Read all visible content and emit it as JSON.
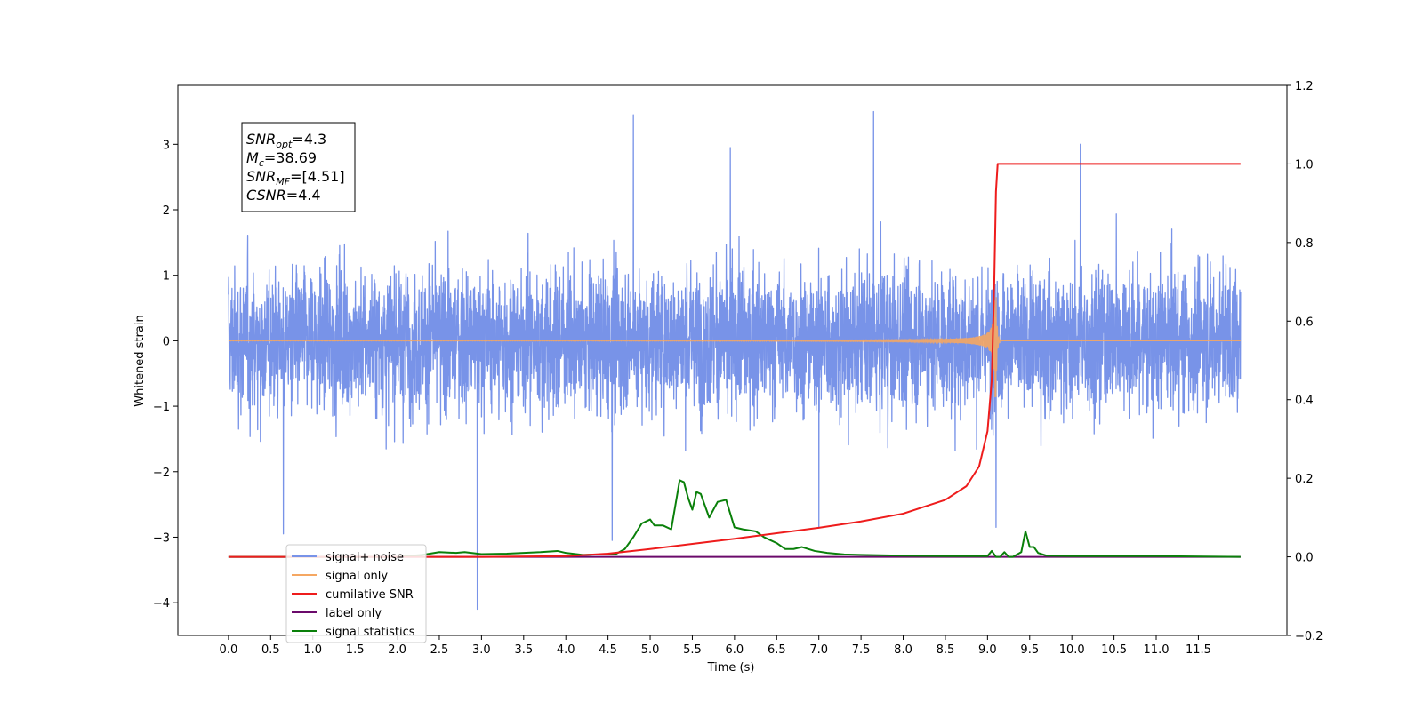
{
  "chart_data": {
    "type": "line",
    "xlabel": "Time (s)",
    "ylabel_left": "Whitened strain",
    "ylabel_right": "",
    "x_ticks": [
      "0.0",
      "0.5",
      "1.0",
      "1.5",
      "2.0",
      "2.5",
      "3.0",
      "3.5",
      "4.0",
      "4.5",
      "5.0",
      "5.5",
      "6.0",
      "6.5",
      "7.0",
      "7.5",
      "8.0",
      "8.5",
      "9.0",
      "9.5",
      "10.0",
      "10.5",
      "11.0",
      "11.5"
    ],
    "y_left_ticks": [
      "3",
      "2",
      "1",
      "0",
      "−1",
      "−2",
      "−3",
      "−4"
    ],
    "y_right_ticks": [
      "1.2",
      "1.0",
      "0.8",
      "0.6",
      "0.4",
      "0.2",
      "0.0",
      "−0.2"
    ],
    "xlim": [
      -0.6,
      12.55
    ],
    "ylim_left": [
      -4.5,
      3.9
    ],
    "ylim_right": [
      -0.2,
      1.2
    ],
    "grid": false,
    "legend_position": "lower-left",
    "annotation": {
      "lines": [
        {
          "base": "SNR",
          "sub": "opt",
          "rest": "=4.3"
        },
        {
          "base": "M",
          "sub": "c",
          "rest": "=38.69"
        },
        {
          "base": "SNR",
          "sub": "MF",
          "rest": "=[4.51]"
        },
        {
          "base": "CSNR",
          "sub": "",
          "rest": "=4.4"
        }
      ]
    },
    "series": [
      {
        "name": "signal+ noise",
        "axis": "left",
        "color": "#7893e8",
        "description_values": {
          "x_range": [
            0.0,
            12.0
          ],
          "typical_amplitude": [
            -2.0,
            2.0
          ],
          "peaks": [
            [
              4.8,
              3.45
            ],
            [
              7.65,
              3.5
            ],
            [
              10.1,
              3.0
            ],
            [
              5.95,
              2.95
            ],
            [
              2.95,
              -4.1
            ],
            [
              0.65,
              -2.95
            ],
            [
              4.55,
              -3.05
            ],
            [
              9.1,
              -2.85
            ],
            [
              7.0,
              -2.85
            ]
          ]
        }
      },
      {
        "name": "signal only",
        "axis": "left",
        "color": "#f5a762",
        "chirp": {
          "start_x": 0.0,
          "merger_x": 9.1,
          "end_x": 12.0,
          "peak_amplitude": 0.9
        }
      },
      {
        "name": "cumilative SNR",
        "axis": "right",
        "color": "#ee1c1c",
        "x": [
          0.0,
          3.0,
          4.0,
          4.5,
          5.0,
          5.5,
          6.0,
          6.5,
          7.0,
          7.5,
          8.0,
          8.5,
          8.75,
          8.9,
          9.0,
          9.05,
          9.08,
          9.1,
          9.12,
          10.0,
          11.0,
          12.0
        ],
        "y": [
          0.0,
          0.0,
          0.002,
          0.008,
          0.02,
          0.033,
          0.046,
          0.06,
          0.074,
          0.09,
          0.11,
          0.145,
          0.18,
          0.23,
          0.32,
          0.45,
          0.7,
          0.93,
          1.0,
          1.0,
          1.0,
          1.0
        ]
      },
      {
        "name": "label only",
        "axis": "right",
        "color": "#6b0a6b",
        "x": [
          0.0,
          12.0
        ],
        "y": [
          0.0,
          0.0
        ]
      },
      {
        "name": "signal statistics",
        "axis": "right",
        "color": "#0a800a",
        "x": [
          0.0,
          2.0,
          2.3,
          2.5,
          2.7,
          2.8,
          3.0,
          3.3,
          3.5,
          3.7,
          3.9,
          4.0,
          4.2,
          4.4,
          4.6,
          4.7,
          4.8,
          4.9,
          5.0,
          5.05,
          5.15,
          5.25,
          5.35,
          5.4,
          5.45,
          5.5,
          5.55,
          5.6,
          5.7,
          5.8,
          5.9,
          6.0,
          6.1,
          6.25,
          6.35,
          6.4,
          6.5,
          6.6,
          6.7,
          6.8,
          6.95,
          7.1,
          7.3,
          7.5,
          8.0,
          8.5,
          9.0,
          9.05,
          9.1,
          9.15,
          9.2,
          9.25,
          9.3,
          9.4,
          9.45,
          9.5,
          9.55,
          9.6,
          9.7,
          10.0,
          10.5,
          11.0,
          12.0
        ],
        "y": [
          0.0,
          0.0,
          0.005,
          0.012,
          0.01,
          0.012,
          0.007,
          0.008,
          0.01,
          0.012,
          0.015,
          0.01,
          0.005,
          0.006,
          0.008,
          0.02,
          0.05,
          0.085,
          0.095,
          0.08,
          0.08,
          0.07,
          0.195,
          0.19,
          0.15,
          0.12,
          0.165,
          0.16,
          0.1,
          0.14,
          0.145,
          0.075,
          0.07,
          0.065,
          0.05,
          0.045,
          0.035,
          0.02,
          0.02,
          0.025,
          0.015,
          0.01,
          0.006,
          0.005,
          0.003,
          0.002,
          0.002,
          0.015,
          0.0,
          0.0,
          0.012,
          0.0,
          0.0,
          0.012,
          0.065,
          0.025,
          0.025,
          0.01,
          0.003,
          0.002,
          0.002,
          0.002,
          0.0
        ]
      }
    ]
  }
}
